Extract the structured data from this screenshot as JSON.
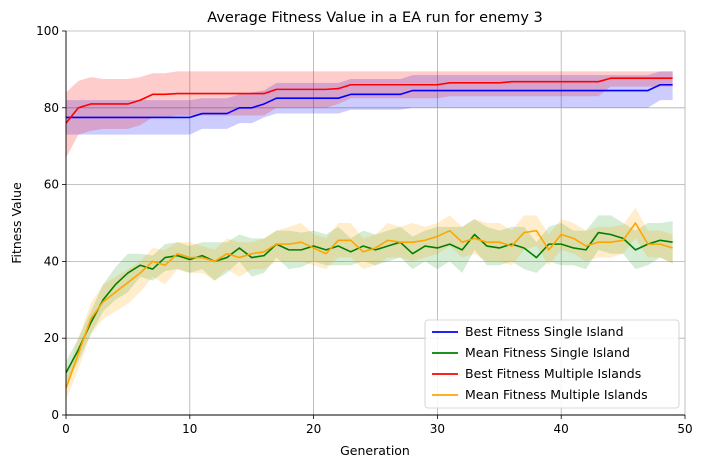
{
  "chart_data": {
    "type": "line",
    "title": "Average Fitness Value in a EA run for enemy 3",
    "xlabel": "Generation",
    "ylabel": "Fitness Value",
    "xlim": [
      0,
      50
    ],
    "ylim": [
      0,
      100
    ],
    "xticks": [
      "0",
      "10",
      "20",
      "30",
      "40",
      "50"
    ],
    "yticks": [
      "0",
      "20",
      "40",
      "60",
      "80",
      "100"
    ],
    "grid": true,
    "legend_position": "lower-right",
    "x": [
      0,
      1,
      2,
      3,
      4,
      5,
      6,
      7,
      8,
      9,
      10,
      11,
      12,
      13,
      14,
      15,
      16,
      17,
      18,
      19,
      20,
      21,
      22,
      23,
      24,
      25,
      26,
      27,
      28,
      29,
      30,
      31,
      32,
      33,
      34,
      35,
      36,
      37,
      38,
      39,
      40,
      41,
      42,
      43,
      44,
      45,
      46,
      47,
      48,
      49
    ],
    "series": [
      {
        "name": "Best Fitness Single Island",
        "color": "#0000ff",
        "band_color": "#0000ff",
        "values": [
          77.5,
          77.5,
          77.5,
          77.5,
          77.5,
          77.5,
          77.5,
          77.5,
          77.5,
          77.5,
          77.5,
          78.5,
          78.5,
          78.5,
          80,
          80,
          81,
          82.5,
          82.5,
          82.5,
          82.5,
          82.5,
          82.5,
          83.5,
          83.5,
          83.5,
          83.5,
          83.5,
          84.5,
          84.5,
          84.5,
          84.5,
          84.5,
          84.5,
          84.5,
          84.5,
          84.5,
          84.5,
          84.5,
          84.5,
          84.5,
          84.5,
          84.5,
          84.5,
          84.5,
          84.5,
          84.5,
          84.5,
          86,
          86
        ],
        "upper": [
          82,
          82,
          82,
          82,
          82,
          82,
          82,
          82,
          82,
          82,
          82,
          82.5,
          82.5,
          82.5,
          83.5,
          84,
          84.5,
          86.5,
          86.5,
          86.5,
          86.5,
          86.5,
          86.5,
          87.5,
          87.5,
          87.5,
          87.5,
          87.5,
          88.5,
          88.5,
          88.5,
          88.5,
          88.5,
          88.5,
          88.5,
          88.5,
          88.5,
          88.5,
          88.5,
          88.5,
          88.5,
          88.5,
          88.5,
          88.5,
          88.5,
          88.5,
          88.5,
          88.5,
          89.5,
          89.5
        ],
        "lower": [
          73,
          73,
          73,
          73,
          73,
          73,
          73,
          73,
          73,
          73,
          73,
          74.5,
          74.5,
          74.5,
          76,
          76,
          77.5,
          78.5,
          78.5,
          78.5,
          78.5,
          78.5,
          78.5,
          79.5,
          79.5,
          79.5,
          79.5,
          79.5,
          80,
          80,
          80,
          80,
          80,
          80,
          80,
          80,
          80,
          80,
          80,
          80,
          80,
          80,
          80,
          80,
          80,
          80,
          80,
          80,
          82,
          82
        ]
      },
      {
        "name": "Mean Fitness Single Island",
        "color": "#008000",
        "band_color": "#2ca02c",
        "values": [
          11,
          17,
          24,
          30,
          34,
          37,
          39,
          38,
          41,
          41.5,
          40.5,
          41.5,
          40,
          41,
          43.5,
          41,
          41.5,
          44.5,
          43,
          43,
          44,
          43,
          44,
          42.5,
          44,
          43,
          44,
          45,
          42,
          44,
          43.5,
          44.5,
          43,
          47,
          44,
          43.5,
          44.5,
          43.5,
          41,
          44.5,
          44.5,
          43.5,
          43,
          47.5,
          47,
          46,
          43,
          44.5,
          45.5,
          45
        ],
        "upper": [
          14,
          20,
          27,
          34,
          38.5,
          42,
          42,
          41.5,
          44.5,
          45,
          44,
          45,
          45,
          45,
          47,
          46,
          46,
          48,
          48,
          47.5,
          48,
          47,
          49,
          46,
          48,
          47,
          48,
          49,
          46.5,
          48,
          49,
          49,
          49,
          51,
          49,
          48,
          49,
          49,
          45,
          49,
          50,
          48,
          48,
          52,
          52,
          50,
          48,
          50,
          50,
          50.5
        ],
        "lower": [
          8,
          14,
          21,
          27,
          30,
          32,
          36,
          35,
          37.5,
          38,
          37,
          38,
          35,
          37,
          40,
          36,
          37,
          41,
          38,
          38.5,
          40,
          39,
          39,
          39,
          40,
          39,
          40,
          41,
          38,
          40,
          38,
          40,
          37,
          43,
          39,
          39,
          40,
          38,
          37,
          40,
          39,
          39,
          38,
          43,
          42,
          42,
          38,
          39,
          41,
          39.5
        ]
      },
      {
        "name": "Best Fitness Multiple Islands",
        "color": "#ff0000",
        "band_color": "#ff0000",
        "values": [
          76,
          80,
          81,
          81,
          81,
          81,
          82,
          83.5,
          83.5,
          83.7,
          83.7,
          83.7,
          83.7,
          83.7,
          83.7,
          83.7,
          83.7,
          84.8,
          84.8,
          84.8,
          84.8,
          84.8,
          85,
          86,
          86,
          86,
          86,
          86,
          86,
          86,
          86,
          86.5,
          86.5,
          86.5,
          86.5,
          86.5,
          86.8,
          86.8,
          86.8,
          86.8,
          86.8,
          86.8,
          86.8,
          86.8,
          87.7,
          87.7,
          87.7,
          87.7,
          87.7,
          87.7
        ],
        "upper": [
          84,
          87,
          88,
          87.5,
          87.5,
          87.5,
          88,
          89,
          89,
          89.5,
          89.5,
          89.5,
          89.5,
          89.5,
          89.5,
          89.5,
          89.5,
          89.5,
          89.5,
          89.5,
          89.5,
          89.5,
          89.5,
          89.5,
          89.5,
          89.5,
          89.5,
          89.5,
          89.5,
          89.5,
          89.5,
          89.5,
          89.5,
          89.5,
          89.5,
          89.5,
          89.5,
          89.5,
          89.5,
          89.5,
          89.5,
          89.5,
          89.5,
          89.5,
          89.5,
          89.5,
          89.5,
          89.5,
          89.5,
          89.5
        ],
        "lower": [
          67,
          73,
          74,
          74.5,
          74.5,
          74.5,
          75.5,
          77.5,
          77.5,
          78,
          78,
          78,
          78,
          78,
          78,
          78,
          78,
          80,
          80,
          80,
          80,
          80,
          81,
          82.5,
          82.5,
          82.5,
          82.5,
          82.5,
          82.5,
          82.5,
          82.5,
          83,
          83,
          83,
          83,
          83,
          83,
          83,
          83,
          83,
          83,
          83,
          83,
          83,
          85.5,
          85.5,
          85.5,
          85.5,
          85.5,
          85.5
        ]
      },
      {
        "name": "Mean Fitness Multiple Islands",
        "color": "#ffa500",
        "band_color": "#ffa500",
        "values": [
          7,
          16,
          25,
          29.5,
          32,
          34.5,
          37,
          40,
          39,
          42,
          41,
          41,
          40,
          42,
          41,
          42,
          42.5,
          44.5,
          44.5,
          45,
          43.5,
          42,
          45.5,
          45.5,
          42.5,
          43.5,
          45.5,
          45,
          45,
          45.5,
          46.5,
          48,
          45,
          46,
          45,
          45,
          44,
          47.5,
          48,
          43,
          47,
          46,
          44,
          45,
          45,
          45.5,
          50,
          44.5,
          44.5,
          43.5
        ],
        "upper": [
          10,
          20,
          29,
          34,
          36,
          38,
          40,
          43.5,
          43,
          45,
          45,
          44,
          43,
          46,
          45,
          45,
          46,
          48,
          49,
          50,
          47,
          46,
          50,
          50,
          46,
          47,
          50,
          49,
          50,
          49,
          50,
          52,
          49,
          51,
          50,
          50,
          48,
          52,
          52,
          47,
          51,
          50,
          48,
          49,
          49,
          49.5,
          54,
          48,
          48,
          47
        ],
        "lower": [
          4,
          12,
          21,
          25,
          27,
          29,
          32,
          36,
          34,
          38,
          37,
          37,
          35,
          38,
          36,
          38,
          38,
          40,
          40,
          40,
          39,
          38,
          41,
          41,
          38,
          39,
          41,
          41,
          40,
          41,
          42,
          44,
          41,
          42,
          40,
          40,
          39,
          43,
          44,
          39,
          43,
          42,
          40,
          41,
          41,
          42,
          46,
          41,
          41,
          39.5
        ]
      }
    ]
  }
}
